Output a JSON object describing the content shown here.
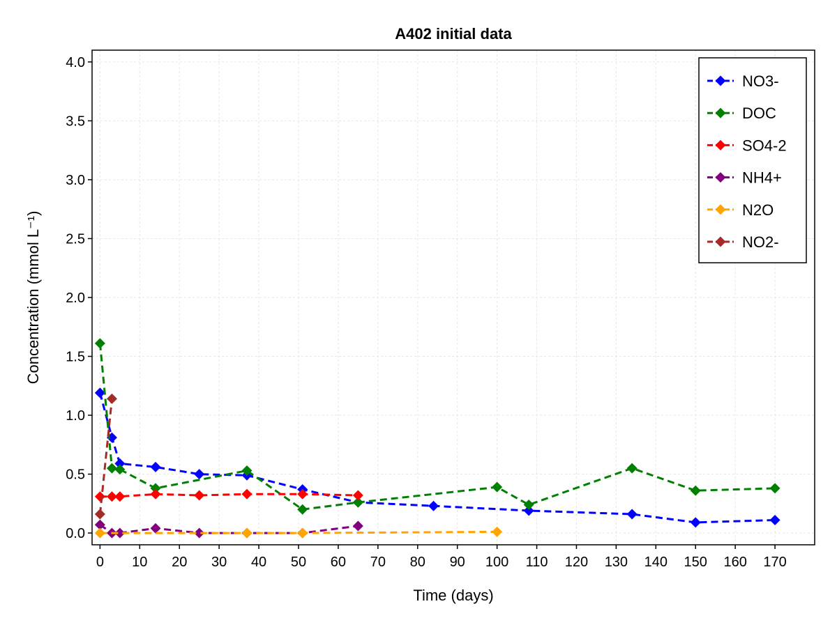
{
  "chart_data": {
    "type": "line",
    "title": "A402 initial data",
    "xlabel": "Time (days)",
    "ylabel": "Concentration (mmol L⁻¹)",
    "xlim": [
      -2,
      180
    ],
    "ylim": [
      -0.1,
      4.1
    ],
    "xticks": [
      0,
      10,
      20,
      30,
      40,
      50,
      60,
      70,
      80,
      90,
      100,
      110,
      120,
      130,
      140,
      150,
      160,
      170
    ],
    "yticks": [
      0.0,
      0.5,
      1.0,
      1.5,
      2.0,
      2.5,
      3.0,
      3.5,
      4.0
    ],
    "ytick_labels": [
      "0.0",
      "0.5",
      "1.0",
      "1.5",
      "2.0",
      "2.5",
      "3.0",
      "3.5",
      "4.0"
    ],
    "grid": true,
    "legend_position": "top-right",
    "line_style": "dashed",
    "marker": "diamond",
    "series": [
      {
        "name": "NO3-",
        "color": "#0000ff",
        "x": [
          0,
          3,
          5,
          14,
          25,
          37,
          51,
          65,
          84,
          108,
          134,
          150,
          170
        ],
        "y": [
          1.19,
          0.81,
          0.59,
          0.56,
          0.5,
          0.49,
          0.37,
          0.26,
          0.23,
          0.19,
          0.16,
          0.09,
          0.11
        ]
      },
      {
        "name": "DOC",
        "color": "#008000",
        "x": [
          0,
          3,
          5,
          14,
          37,
          51,
          65,
          100,
          108,
          134,
          150,
          170
        ],
        "y": [
          1.61,
          0.55,
          0.54,
          0.38,
          0.53,
          0.2,
          0.26,
          0.39,
          0.24,
          0.55,
          0.36,
          0.38
        ]
      },
      {
        "name": "SO4-2",
        "color": "#ff0000",
        "x": [
          0,
          3,
          5,
          14,
          25,
          37,
          51,
          65
        ],
        "y": [
          0.31,
          0.31,
          0.31,
          0.33,
          0.32,
          0.33,
          0.33,
          0.32
        ]
      },
      {
        "name": "NH4+",
        "color": "#800080",
        "x": [
          0,
          3,
          5,
          14,
          25,
          37,
          51,
          65
        ],
        "y": [
          0.07,
          0.0,
          0.0,
          0.04,
          0.0,
          0.0,
          0.0,
          0.06
        ]
      },
      {
        "name": "N2O",
        "color": "#ffa500",
        "x": [
          0,
          37,
          51,
          100
        ],
        "y": [
          0.0,
          0.0,
          0.0,
          0.01
        ]
      },
      {
        "name": "NO2-",
        "color": "#a52a2a",
        "x": [
          0,
          3
        ],
        "y": [
          0.16,
          1.14
        ]
      }
    ]
  }
}
